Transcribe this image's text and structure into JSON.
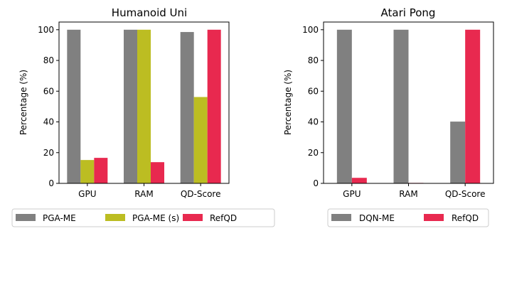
{
  "colors": {
    "PGA-ME": "#808080",
    "PGA-ME (s)": "#bcbd22",
    "DQN-ME": "#808080",
    "RefQD": "#e8294f"
  },
  "chart_data": [
    {
      "type": "bar",
      "title": "Humanoid Uni",
      "ylabel": "Percentage (%)",
      "xlabel": "",
      "categories": [
        "GPU",
        "RAM",
        "QD-Score"
      ],
      "yticks": [
        "0",
        "20",
        "40",
        "60",
        "80",
        "100"
      ],
      "ylim": [
        0,
        105
      ],
      "grid": false,
      "legend_position": "bottom",
      "series": [
        {
          "name": "PGA-ME",
          "values": [
            100,
            100,
            98.5
          ]
        },
        {
          "name": "PGA-ME (s)",
          "values": [
            15.2,
            100,
            56.2
          ]
        },
        {
          "name": "RefQD",
          "values": [
            16.6,
            13.8,
            100
          ]
        }
      ]
    },
    {
      "type": "bar",
      "title": "Atari Pong",
      "ylabel": "Percentage (%)",
      "xlabel": "",
      "categories": [
        "GPU",
        "RAM",
        "QD-Score"
      ],
      "yticks": [
        "0",
        "20",
        "40",
        "60",
        "80",
        "100"
      ],
      "ylim": [
        0,
        105
      ],
      "grid": false,
      "legend_position": "bottom",
      "series": [
        {
          "name": "DQN-ME",
          "values": [
            100,
            100,
            40.2
          ]
        },
        {
          "name": "RefQD",
          "values": [
            3.6,
            0.3,
            100
          ]
        }
      ]
    }
  ]
}
